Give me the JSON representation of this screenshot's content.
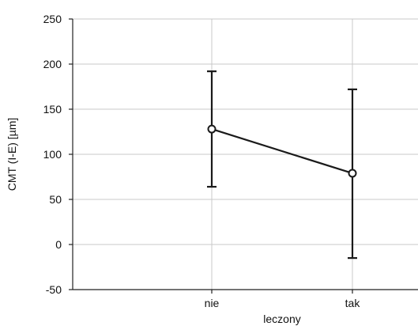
{
  "chart_data": {
    "type": "line",
    "title": "",
    "xlabel": "leczony",
    "ylabel": "CMT (I-E) [µm]",
    "categories": [
      "nie",
      "tak"
    ],
    "series": [
      {
        "values": [
          128,
          79
        ],
        "error_lower": [
          64,
          -15
        ],
        "error_upper": [
          192,
          172
        ]
      }
    ],
    "ylim": [
      -50,
      250
    ],
    "yticks": [
      -50,
      0,
      50,
      100,
      150,
      200,
      250
    ],
    "grid": true,
    "grid_axis": "y",
    "legend": "none",
    "colors": {
      "line": "#1a1a1a",
      "grid": "#c8c8c8",
      "axis": "#222222"
    }
  }
}
